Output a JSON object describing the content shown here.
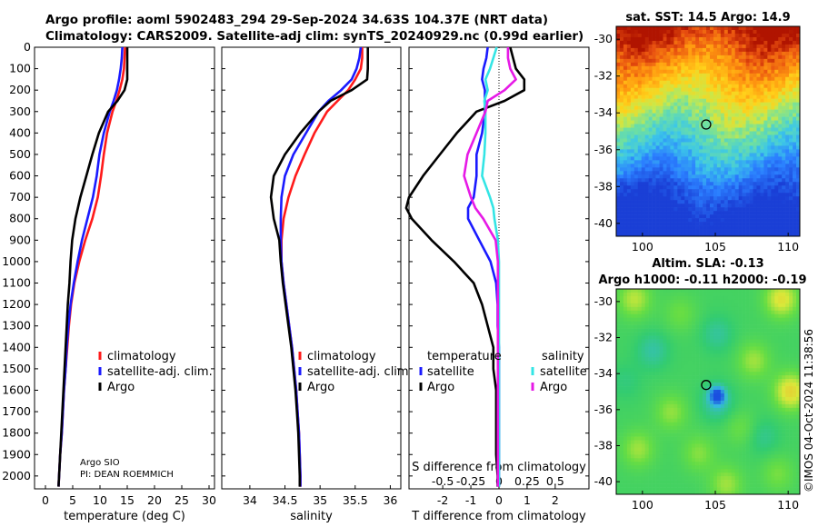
{
  "header": {
    "line1": "Argo profile: aoml 5902483_294 29-Sep-2024 34.63S 104.37E (NRT data)",
    "line2": "Climatology: CARS2009. Satellite-adj clim: synTS_20240929.nc (0.99d earlier)"
  },
  "colors": {
    "clim": "#ff1a1a",
    "sat": "#1a1aff",
    "argo": "#000000",
    "sat_s": "#33e5e5",
    "argo_s": "#e61ae6"
  },
  "chart_data": [
    {
      "id": "temperature",
      "type": "line",
      "xlabel": "temperature (deg C)",
      "ylabel": "",
      "xlim": [
        -2,
        31
      ],
      "ylim": [
        2060,
        0
      ],
      "xticks": [
        "0",
        "5",
        "10",
        "15",
        "20",
        "25",
        "30"
      ],
      "yticks": [
        "0",
        "100",
        "200",
        "300",
        "400",
        "500",
        "600",
        "700",
        "800",
        "900",
        "1000",
        "1100",
        "1200",
        "1300",
        "1400",
        "1500",
        "1600",
        "1700",
        "1800",
        "1900",
        "2000"
      ],
      "legend": [
        "climatology",
        "satellite-adj. clim.",
        "Argo"
      ],
      "notes": [
        "Argo SIO",
        "PI: DEAN ROEMMICH"
      ],
      "depth": [
        0,
        50,
        100,
        150,
        200,
        250,
        300,
        400,
        500,
        600,
        700,
        800,
        900,
        1000,
        1100,
        1200,
        1300,
        1400,
        1500,
        1600,
        1700,
        1800,
        1900,
        2000,
        2050
      ],
      "series": [
        {
          "name": "climatology",
          "values": [
            14.6,
            14.5,
            14.4,
            14.1,
            13.6,
            13.0,
            12.3,
            11.3,
            10.7,
            10.2,
            9.6,
            8.6,
            7.3,
            6.2,
            5.3,
            4.7,
            4.3,
            4.0,
            3.7,
            3.4,
            3.2,
            3.0,
            2.7,
            2.5,
            2.4
          ]
        },
        {
          "name": "satellite-adj. clim.",
          "values": [
            14.1,
            14.0,
            13.8,
            13.5,
            13.1,
            12.5,
            11.8,
            10.7,
            9.9,
            9.4,
            8.7,
            7.7,
            6.7,
            5.9,
            5.2,
            4.6,
            4.2,
            3.9,
            3.7,
            3.4,
            3.2,
            3.0,
            2.7,
            2.5,
            2.4
          ]
        },
        {
          "name": "Argo",
          "values": [
            15.0,
            15.0,
            15.0,
            15.0,
            14.5,
            13.2,
            11.5,
            9.8,
            8.6,
            7.5,
            6.4,
            5.5,
            4.9,
            4.6,
            4.4,
            4.1,
            3.9,
            3.7,
            3.5,
            3.3,
            3.1,
            2.9,
            2.7,
            2.5,
            2.4
          ]
        }
      ]
    },
    {
      "id": "salinity",
      "type": "line",
      "xlabel": "salinity",
      "xlim": [
        33.6,
        36.15
      ],
      "ylim": [
        2060,
        0
      ],
      "xticks": [
        "34",
        "34.5",
        "35",
        "35.5",
        "36"
      ],
      "legend": [
        "climatology",
        "satellite-adj. clim.",
        "Argo"
      ],
      "depth": [
        0,
        50,
        100,
        150,
        200,
        250,
        300,
        400,
        500,
        600,
        700,
        800,
        900,
        1000,
        1100,
        1200,
        1300,
        1400,
        1500,
        1600,
        1700,
        1800,
        1900,
        2000,
        2050
      ],
      "series": [
        {
          "name": "climatology",
          "values": [
            35.6,
            35.6,
            35.58,
            35.5,
            35.4,
            35.25,
            35.1,
            34.92,
            34.78,
            34.65,
            34.55,
            34.48,
            34.45,
            34.45,
            34.48,
            34.52,
            34.56,
            34.6,
            34.63,
            34.66,
            34.68,
            34.7,
            34.71,
            34.72,
            34.72
          ]
        },
        {
          "name": "satellite-adj. clim.",
          "values": [
            35.58,
            35.56,
            35.52,
            35.45,
            35.3,
            35.12,
            34.98,
            34.8,
            34.62,
            34.5,
            34.45,
            34.44,
            34.44,
            34.45,
            34.48,
            34.52,
            34.56,
            34.6,
            34.63,
            34.66,
            34.68,
            34.7,
            34.71,
            34.72,
            34.72
          ]
        },
        {
          "name": "Argo",
          "values": [
            35.68,
            35.68,
            35.68,
            35.67,
            35.45,
            35.15,
            34.98,
            34.72,
            34.5,
            34.34,
            34.3,
            34.34,
            34.42,
            34.44,
            34.47,
            34.51,
            34.55,
            34.59,
            34.62,
            34.65,
            34.67,
            34.69,
            34.7,
            34.71,
            34.71
          ]
        }
      ]
    },
    {
      "id": "difference",
      "type": "line",
      "xlabel": "T difference from climatology",
      "toplabel": "S difference from climatology",
      "xlim": [
        -3.2,
        3.2
      ],
      "ylim": [
        2060,
        0
      ],
      "xticks": [
        "-2",
        "-1",
        "0",
        "1",
        "2"
      ],
      "sticks": [
        "-0.5",
        "-0.25",
        "0",
        "0.25",
        "0.5"
      ],
      "legend_titles": [
        "temperature",
        "salinity"
      ],
      "legend_t": [
        "satellite",
        "Argo"
      ],
      "legend_s": [
        "satellite",
        "Argo"
      ],
      "depth": [
        0,
        50,
        100,
        150,
        200,
        250,
        300,
        400,
        500,
        600,
        700,
        750,
        800,
        900,
        1000,
        1100,
        1200,
        1300,
        1400,
        1500,
        1600,
        1700,
        1800,
        1900,
        2000,
        2050
      ],
      "series": [
        {
          "name": "temperature satellite",
          "values": [
            -0.4,
            -0.45,
            -0.55,
            -0.6,
            -0.5,
            -0.5,
            -0.5,
            -0.6,
            -0.8,
            -0.8,
            -0.9,
            -1.1,
            -1.1,
            -0.7,
            -0.3,
            -0.1,
            -0.05,
            -0.05,
            0.0,
            0.0,
            0.0,
            0.0,
            0.0,
            0.0,
            0.0,
            0.0
          ]
        },
        {
          "name": "temperature Argo",
          "values": [
            0.4,
            0.5,
            0.6,
            0.9,
            0.9,
            0.2,
            -0.8,
            -1.5,
            -2.1,
            -2.7,
            -3.2,
            -3.3,
            -3.1,
            -2.4,
            -1.6,
            -0.9,
            -0.6,
            -0.4,
            -0.2,
            -0.2,
            -0.1,
            -0.1,
            -0.1,
            -0.1,
            -0.05,
            -0.05
          ]
        },
        {
          "name": "salinity satellite",
          "values": [
            -0.02,
            -0.05,
            -0.08,
            -0.12,
            -0.1,
            -0.13,
            -0.12,
            -0.12,
            -0.13,
            -0.15,
            -0.08,
            -0.05,
            -0.04,
            -0.01,
            0.0,
            0.0,
            0.0,
            0.0,
            0.0,
            0.0,
            0.0,
            0.0,
            0.0,
            0.0,
            0.0,
            0.0
          ]
        },
        {
          "name": "salinity Argo",
          "values": [
            0.08,
            0.08,
            0.1,
            0.15,
            0.05,
            -0.1,
            -0.12,
            -0.2,
            -0.28,
            -0.31,
            -0.25,
            -0.21,
            -0.14,
            -0.03,
            -0.01,
            -0.01,
            -0.01,
            -0.01,
            -0.01,
            -0.01,
            -0.01,
            -0.01,
            -0.01,
            -0.01,
            -0.01,
            -0.01
          ]
        }
      ]
    },
    {
      "id": "sst_map",
      "type": "heatmap",
      "title": "sat. SST: 14.5 Argo: 14.9",
      "xlim": [
        98.2,
        110.8
      ],
      "ylim": [
        -40.7,
        -29.3
      ],
      "xticks": [
        "100",
        "105",
        "110"
      ],
      "yticks": [
        "-30",
        "-32",
        "-34",
        "-36",
        "-38",
        "-40"
      ],
      "marker": [
        104.37,
        -34.63
      ]
    },
    {
      "id": "sla_map",
      "type": "heatmap",
      "title": "Altim. SLA: -0.13",
      "subtitle": "Argo h1000: -0.11 h2000: -0.19",
      "xlim": [
        98.2,
        110.8
      ],
      "ylim": [
        -40.7,
        -29.3
      ],
      "xticks": [
        "100",
        "105",
        "110"
      ],
      "yticks": [
        "-30",
        "-32",
        "-34",
        "-36",
        "-38",
        "-40"
      ],
      "marker": [
        104.37,
        -34.63
      ]
    }
  ],
  "footer": {
    "stamp": "©IMOS 04-Oct-2024 11:38:56"
  }
}
